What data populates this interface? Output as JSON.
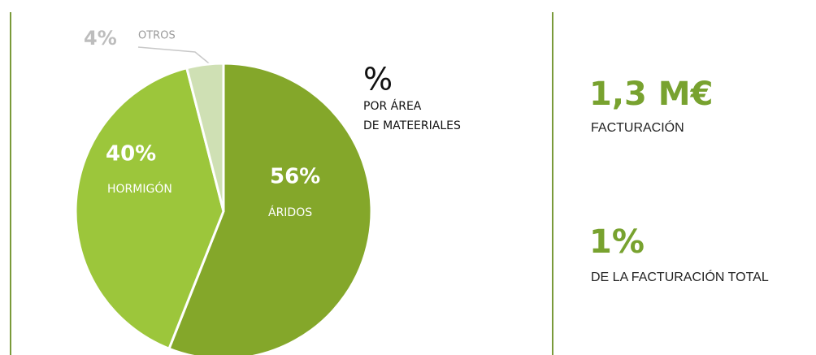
{
  "chart_data": {
    "type": "pie",
    "title": "%",
    "subtitle": [
      "POR ÁREA",
      "DE MATEERIALES"
    ],
    "categories": [
      "ÁRIDOS",
      "HORMIGÓN",
      "OTROS"
    ],
    "values": [
      56,
      40,
      4
    ],
    "value_labels": [
      "56%",
      "40%",
      "4%"
    ],
    "colors": [
      "#84a72a",
      "#9cc63b",
      "#cfe0b4"
    ]
  },
  "stats": [
    {
      "value": "1,3 M€",
      "label": "FACTURACIÓN"
    },
    {
      "value": "1%",
      "label": "DE LA FACTURACIÓN TOTAL"
    }
  ]
}
